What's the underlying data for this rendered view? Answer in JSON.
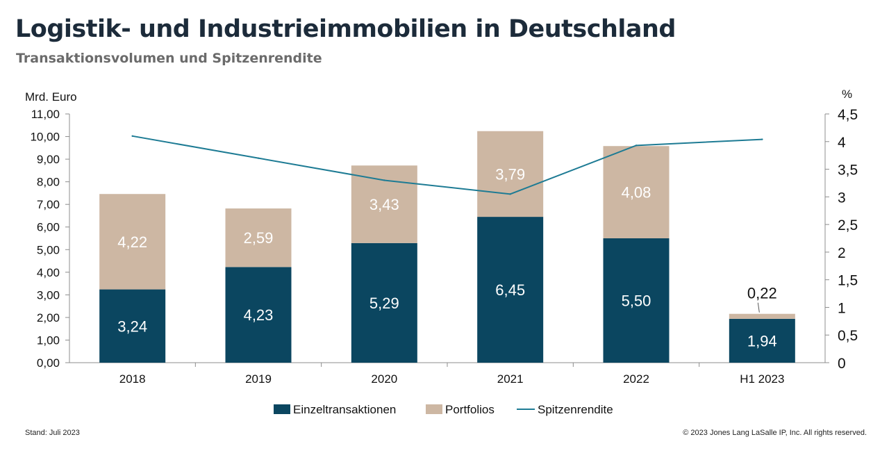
{
  "header": {
    "title": "Logistik- und Industrieimmobilien in Deutschland",
    "subtitle": "Transaktionsvolumen und Spitzenrendite"
  },
  "footer": {
    "left": "Stand: Juli 2023",
    "right": "© 2023 Jones Lang LaSalle IP, Inc. All rights reserved."
  },
  "colors": {
    "einzel": "#0b4660",
    "portfolio": "#cdb7a3",
    "rendite": "#1d7b94",
    "axis": "#8c8c8c",
    "text": "#111111"
  },
  "chart_data": {
    "type": "bar",
    "stacked": true,
    "categories": [
      "2018",
      "2019",
      "2020",
      "2021",
      "2022",
      "H1 2023"
    ],
    "series": [
      {
        "name": "Einzeltransaktionen",
        "kind": "bar",
        "axis": "left",
        "values": [
          3.24,
          4.23,
          5.29,
          6.45,
          5.5,
          1.94
        ],
        "labels": [
          "3,24",
          "4,23",
          "5,29",
          "6,45",
          "5,50",
          "1,94"
        ]
      },
      {
        "name": "Portfolios",
        "kind": "bar",
        "axis": "left",
        "values": [
          4.22,
          2.59,
          3.43,
          3.79,
          4.08,
          0.22
        ],
        "labels": [
          "4,22",
          "2,59",
          "3,43",
          "3,79",
          "4,08",
          "0,22"
        ]
      },
      {
        "name": "Spitzenrendite",
        "kind": "line",
        "axis": "right",
        "values": [
          4.1,
          3.7,
          3.3,
          3.05,
          3.93,
          4.04
        ]
      }
    ],
    "ylabel_left": "Mrd. Euro",
    "ylabel_right": "%",
    "ylim_left": [
      0,
      11
    ],
    "ylim_right": [
      0,
      4.5
    ],
    "yticks_left": [
      "0,00",
      "1,00",
      "2,00",
      "3,00",
      "4,00",
      "5,00",
      "6,00",
      "7,00",
      "8,00",
      "9,00",
      "10,00",
      "11,00"
    ],
    "yticks_right": [
      "0",
      "0,5",
      "1",
      "1,5",
      "2",
      "2,5",
      "3",
      "3,5",
      "4",
      "4,5"
    ],
    "grid": false,
    "legend_position": "bottom"
  }
}
